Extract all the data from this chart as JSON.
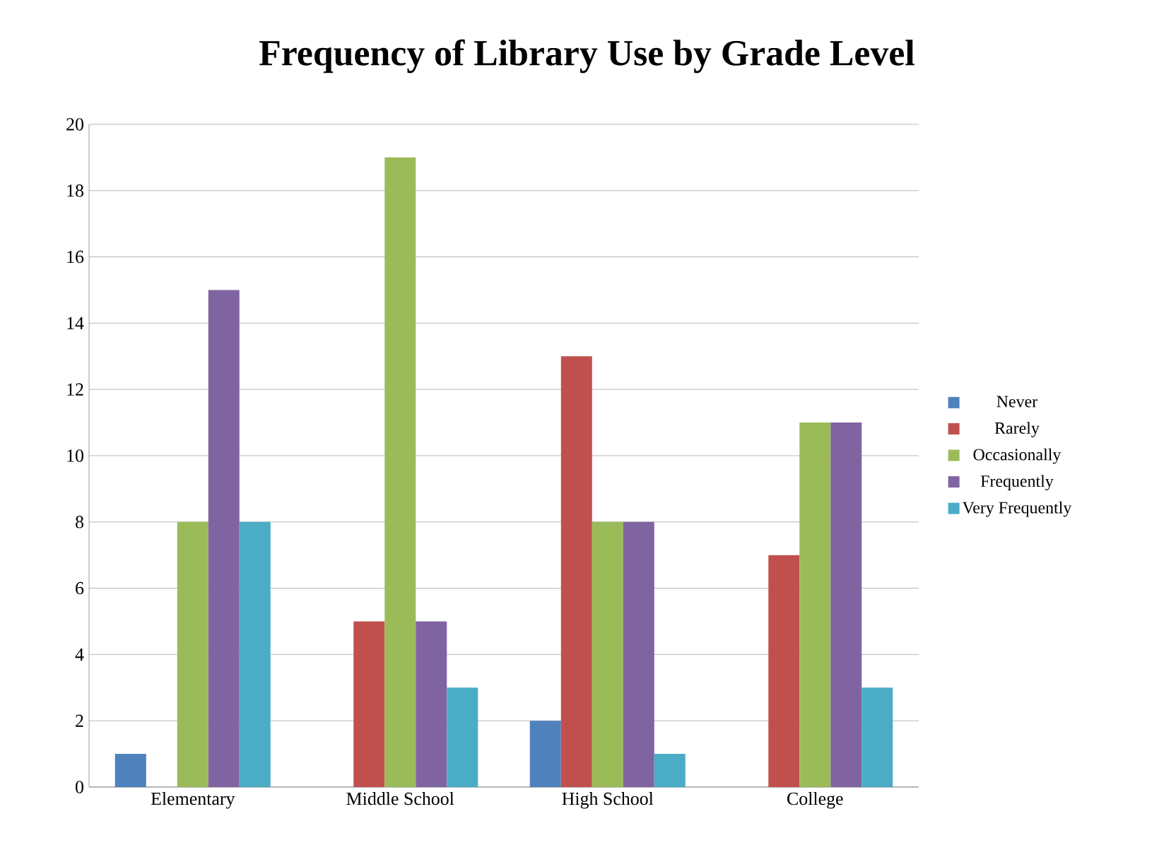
{
  "chart_data": {
    "type": "bar",
    "title": "Frequency of Library Use by Grade Level",
    "categories": [
      "Elementary",
      "Middle School",
      "High School",
      "College"
    ],
    "series": [
      {
        "name": "Never",
        "color": "#4f81bd",
        "values": [
          1,
          0,
          2,
          0
        ]
      },
      {
        "name": "Rarely",
        "color": "#c0504d",
        "values": [
          0,
          5,
          13,
          7
        ]
      },
      {
        "name": "Occasionally",
        "color": "#9bbb59",
        "values": [
          8,
          19,
          8,
          11
        ]
      },
      {
        "name": "Frequently",
        "color": "#8064a2",
        "values": [
          15,
          5,
          8,
          11
        ]
      },
      {
        "name": "Very Frequently",
        "color": "#4bacc6",
        "values": [
          8,
          3,
          1,
          3
        ]
      }
    ],
    "ylim": [
      0,
      20
    ],
    "yticks": [
      0,
      2,
      4,
      6,
      8,
      10,
      12,
      14,
      16,
      18,
      20
    ],
    "grid": "y",
    "legend": "right"
  }
}
